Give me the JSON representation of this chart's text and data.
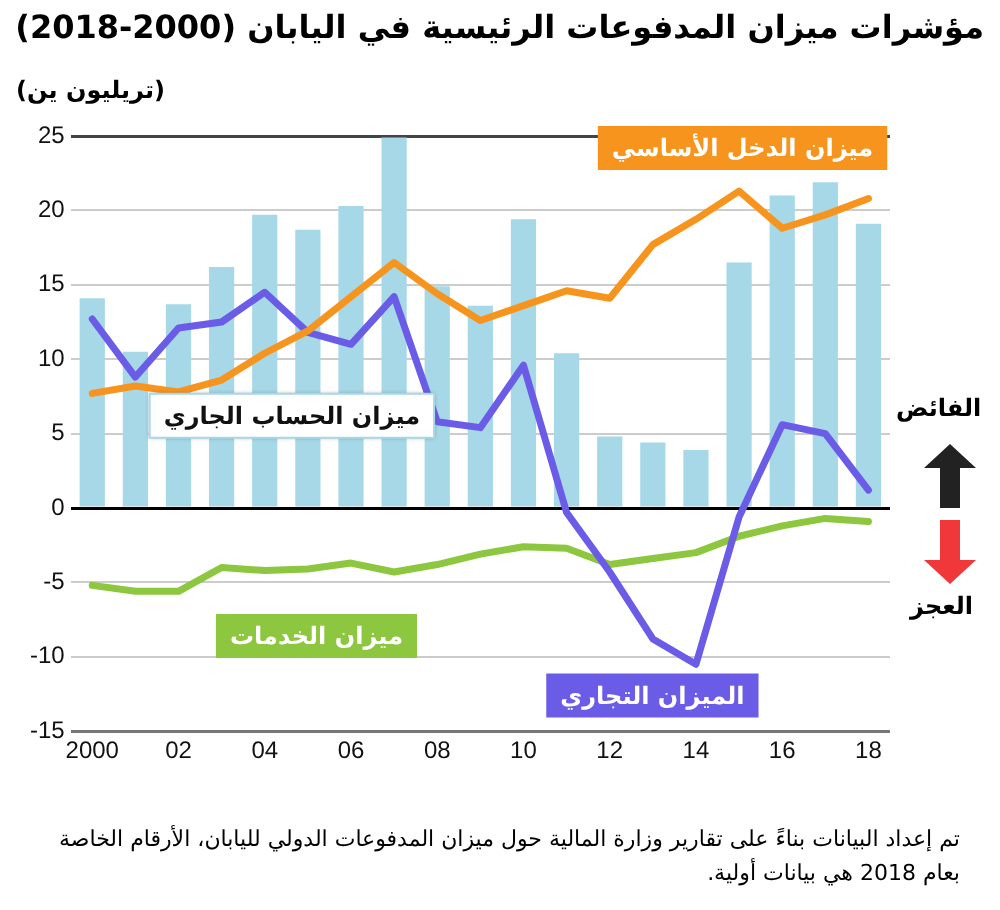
{
  "chart_data": {
    "type": "bar",
    "title": "مؤشرات ميزان المدفوعات الرئيسية في اليابان (2000-2018)",
    "ylabel": "(تريليون ين)",
    "categories": [
      "2000",
      null,
      "02",
      null,
      "04",
      null,
      "06",
      null,
      "08",
      null,
      "10",
      null,
      "12",
      null,
      "14",
      null,
      "16",
      null,
      "18"
    ],
    "series": [
      {
        "name": "ميزان الحساب الجاري",
        "color": "#a6d8e8",
        "values": [
          14.1,
          10.5,
          13.7,
          16.2,
          19.7,
          18.7,
          20.3,
          24.9,
          14.9,
          13.6,
          19.4,
          10.4,
          4.8,
          4.4,
          3.9,
          16.5,
          21.0,
          21.9,
          19.1
        ]
      },
      {
        "name": "ميزان الدخل الأساسي",
        "type": "line",
        "color": "#f7941d",
        "values": [
          7.7,
          8.2,
          7.8,
          8.6,
          10.4,
          11.9,
          14.2,
          16.5,
          14.4,
          12.6,
          13.6,
          14.6,
          14.1,
          17.7,
          19.4,
          21.3,
          18.8,
          19.7,
          20.8
        ]
      },
      {
        "name": "الميزان التجاري",
        "type": "line",
        "color": "#6b5ce7",
        "values": [
          12.7,
          8.8,
          12.1,
          12.5,
          14.5,
          11.8,
          11.0,
          14.2,
          5.8,
          5.4,
          9.6,
          -0.3,
          -4.3,
          -8.8,
          -10.5,
          -0.6,
          5.6,
          5.0,
          1.2
        ]
      },
      {
        "name": "ميزان الخدمات",
        "type": "line",
        "color": "#8dc63f",
        "values": [
          -5.2,
          -5.6,
          -5.6,
          -4.0,
          -4.2,
          -4.1,
          -3.7,
          -4.3,
          -3.8,
          -3.1,
          -2.6,
          -2.7,
          -3.8,
          -3.4,
          -3.0,
          -1.9,
          -1.2,
          -0.7,
          -0.9
        ]
      }
    ],
    "ylim": [
      -15,
      25
    ],
    "yticks": [
      -15,
      -10,
      -5,
      0,
      5,
      10,
      15,
      20,
      25
    ],
    "grid": "y",
    "legend": false,
    "marker": "none",
    "line_style": "solid",
    "annotations": [
      "الفائض",
      "العجز",
      "تم إعداد البيانات بناءً على تقارير وزارة المالية حول ميزان المدفوعات الدولي لليابان، الأرقام الخاصة بعام 2018 هي بيانات أولية."
    ]
  }
}
